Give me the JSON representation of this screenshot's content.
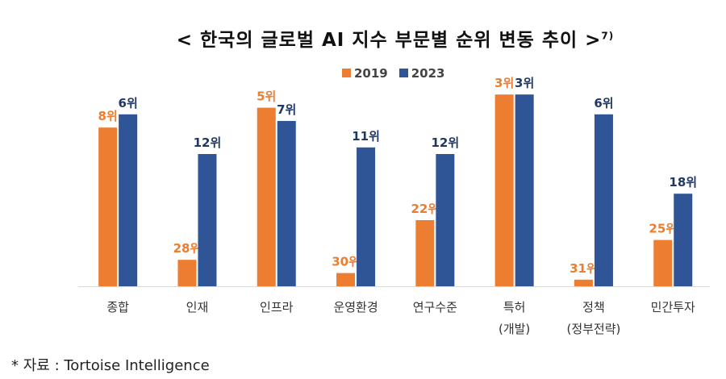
{
  "chart_data": {
    "type": "bar",
    "title": "< 한국의 글로벌 AI 지수 부문별 순위 변동 추이 >",
    "title_footnote_mark": "7)",
    "categories": [
      "종합",
      "인재",
      "인프라",
      "운영환경",
      "연구수준",
      "특허\n(개발)",
      "정책\n(정부전략)",
      "민간투자"
    ],
    "series": [
      {
        "name": "2019",
        "color": "#ED7D31",
        "values": [
          8,
          28,
          5,
          30,
          22,
          3,
          31,
          25
        ],
        "labels": [
          "8위",
          "28위",
          "5위",
          "30위",
          "22위",
          "3위",
          "31위",
          "25위"
        ]
      },
      {
        "name": "2023",
        "color": "#2F5597",
        "values": [
          6,
          12,
          7,
          11,
          12,
          3,
          6,
          18
        ],
        "labels": [
          "6위",
          "12위",
          "7위",
          "11위",
          "12위",
          "3위",
          "6위",
          "18위"
        ]
      }
    ],
    "value_meaning": "rank (lower is better; taller bar = better rank)",
    "legend": "top",
    "grid": false
  },
  "footnote": "* 자료 : Tortoise Intelligence"
}
